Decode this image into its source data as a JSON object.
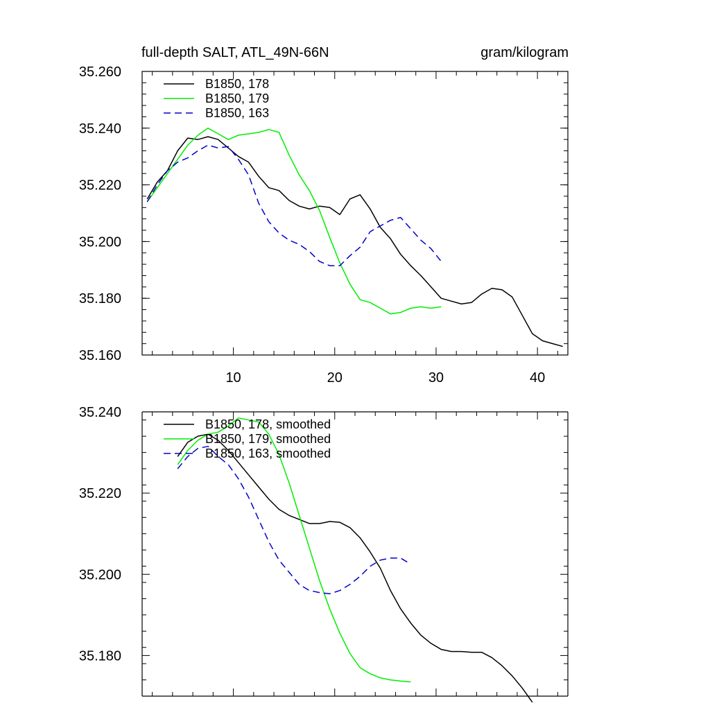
{
  "chart_data": [
    {
      "type": "line",
      "title_left": "full-depth SALT, ATL_49N-66N",
      "title_right": "gram/kilogram",
      "xlim": [
        1,
        43
      ],
      "ylim": [
        35.16,
        35.26
      ],
      "xticks": [
        10,
        20,
        30,
        40
      ],
      "yticks": [
        35.16,
        35.18,
        35.2,
        35.22,
        35.24,
        35.26
      ],
      "ytick_labels": [
        "35.160",
        "35.180",
        "35.200",
        "35.220",
        "35.240",
        "35.260"
      ],
      "xtick_labels": [
        "10",
        "20",
        "30",
        "40"
      ],
      "legend_position": "top-left",
      "series": [
        {
          "name": "B1850, 178",
          "color": "#000000",
          "dash": "solid",
          "x": [
            1.5,
            2.5,
            3.5,
            4.5,
            5.5,
            6.5,
            7.5,
            8.5,
            9.5,
            10.5,
            11.5,
            12.5,
            13.5,
            14.5,
            15.5,
            16.5,
            17.5,
            18.5,
            19.5,
            20.5,
            21.5,
            22.5,
            23.5,
            24.5,
            25.5,
            26.5,
            27.5,
            28.5,
            29.5,
            30.5,
            31.5,
            32.5,
            33.5,
            34.5,
            35.5,
            36.5,
            37.5,
            38.5,
            39.5,
            40.5,
            41.5,
            42.5
          ],
          "y": [
            35.215,
            35.221,
            35.225,
            35.232,
            35.2365,
            35.236,
            35.237,
            35.236,
            35.233,
            35.23,
            35.228,
            35.223,
            35.219,
            35.218,
            35.2145,
            35.2125,
            35.2115,
            35.2125,
            35.212,
            35.2095,
            35.215,
            35.2165,
            35.2115,
            35.205,
            35.201,
            35.1955,
            35.1915,
            35.188,
            35.184,
            35.18,
            35.179,
            35.178,
            35.1785,
            35.1815,
            35.1835,
            35.183,
            35.1805,
            35.174,
            35.1675,
            35.165,
            35.164,
            35.163
          ]
        },
        {
          "name": "B1850, 179",
          "color": "#00ee00",
          "dash": "solid",
          "x": [
            1.5,
            2.5,
            3.5,
            4.5,
            5.5,
            6.5,
            7.5,
            8.5,
            9.5,
            10.5,
            11.5,
            12.5,
            13.5,
            14.5,
            15.5,
            16.5,
            17.5,
            18.5,
            19.5,
            20.5,
            21.5,
            22.5,
            23.5,
            24.5,
            25.5,
            26.5,
            27.5,
            28.5,
            29.5,
            30.5
          ],
          "y": [
            35.214,
            35.219,
            35.224,
            35.229,
            35.234,
            35.2375,
            35.24,
            35.238,
            35.236,
            35.2375,
            35.238,
            35.2385,
            35.2395,
            35.2385,
            35.2305,
            35.2235,
            35.218,
            35.211,
            35.2015,
            35.1925,
            35.185,
            35.1795,
            35.1785,
            35.1765,
            35.1745,
            35.175,
            35.1765,
            35.177,
            35.1765,
            35.177
          ]
        },
        {
          "name": "B1850, 163",
          "color": "#0000cc",
          "dash": "dashed",
          "x": [
            1.5,
            2.5,
            3.5,
            4.5,
            5.5,
            6.5,
            7.5,
            8.5,
            9.5,
            10.5,
            11.5,
            12.5,
            13.5,
            14.5,
            15.5,
            16.5,
            17.5,
            18.5,
            19.5,
            20.5,
            21.5,
            22.5,
            23.5,
            24.5,
            25.5,
            26.5,
            27.5,
            28.5,
            29.5,
            30.5
          ],
          "y": [
            35.214,
            35.22,
            35.225,
            35.228,
            35.2295,
            35.232,
            35.234,
            35.233,
            35.2335,
            35.229,
            35.2235,
            35.2135,
            35.207,
            35.203,
            35.2005,
            35.199,
            35.1965,
            35.193,
            35.1915,
            35.1915,
            35.195,
            35.198,
            35.2035,
            35.2055,
            35.2075,
            35.2085,
            35.2045,
            35.2005,
            35.1975,
            35.193
          ]
        }
      ]
    },
    {
      "type": "line",
      "xlim": [
        1,
        43
      ],
      "ylim": [
        35.17,
        35.24
      ],
      "xticks": [
        10,
        20,
        30,
        40
      ],
      "yticks": [
        35.18,
        35.2,
        35.22,
        35.24
      ],
      "ytick_labels": [
        "35.180",
        "35.200",
        "35.220",
        "35.240"
      ],
      "legend_position": "top-left",
      "series": [
        {
          "name": "B1850, 178, smoothed",
          "color": "#000000",
          "dash": "solid",
          "x": [
            4.5,
            5.5,
            6.5,
            7.5,
            8.5,
            9.5,
            10.5,
            11.5,
            12.5,
            13.5,
            14.5,
            15.5,
            16.5,
            17.5,
            18.5,
            19.5,
            20.5,
            21.5,
            22.5,
            23.5,
            24.5,
            25.5,
            26.5,
            27.5,
            28.5,
            29.5,
            30.5,
            31.5,
            32.5,
            33.5,
            34.5,
            35.5,
            36.5,
            37.5,
            38.5,
            39.5
          ],
          "y": [
            35.229,
            35.2325,
            35.234,
            35.2345,
            35.233,
            35.2305,
            35.2275,
            35.2245,
            35.2215,
            35.2185,
            35.216,
            35.2145,
            35.2135,
            35.2125,
            35.2125,
            35.213,
            35.2128,
            35.2115,
            35.209,
            35.2055,
            35.2015,
            35.196,
            35.1915,
            35.188,
            35.185,
            35.183,
            35.1815,
            35.181,
            35.181,
            35.1808,
            35.1808,
            35.1795,
            35.1775,
            35.175,
            35.172,
            35.1685
          ]
        },
        {
          "name": "B1850, 179, smoothed",
          "color": "#00ee00",
          "dash": "solid",
          "x": [
            4.5,
            5.5,
            6.5,
            7.5,
            8.5,
            9.5,
            10.5,
            11.5,
            12.5,
            13.5,
            14.5,
            15.5,
            16.5,
            17.5,
            18.5,
            19.5,
            20.5,
            21.5,
            22.5,
            23.5,
            24.5,
            25.5,
            26.5,
            27.5
          ],
          "y": [
            35.227,
            35.2305,
            35.233,
            35.2345,
            35.235,
            35.2365,
            35.2385,
            35.238,
            35.2375,
            35.2345,
            35.2295,
            35.2225,
            35.2145,
            35.2065,
            35.1985,
            35.1915,
            35.1855,
            35.1805,
            35.177,
            35.1755,
            35.1745,
            35.174,
            35.1737,
            35.1735
          ]
        },
        {
          "name": "B1850, 163, smoothed",
          "color": "#0000cc",
          "dash": "dashed",
          "x": [
            4.5,
            5.5,
            6.5,
            7.5,
            8.5,
            9.5,
            10.5,
            11.5,
            12.5,
            13.5,
            14.5,
            15.5,
            16.5,
            17.5,
            18.5,
            19.5,
            20.5,
            21.5,
            22.5,
            23.5,
            24.5,
            25.5,
            26.5,
            27.5
          ],
          "y": [
            35.226,
            35.229,
            35.231,
            35.2315,
            35.229,
            35.227,
            35.2235,
            35.219,
            35.2135,
            35.208,
            35.2035,
            35.2005,
            35.1975,
            35.196,
            35.1955,
            35.1952,
            35.196,
            35.1975,
            35.1995,
            35.202,
            35.2035,
            35.204,
            35.204,
            35.2025
          ]
        }
      ]
    }
  ]
}
